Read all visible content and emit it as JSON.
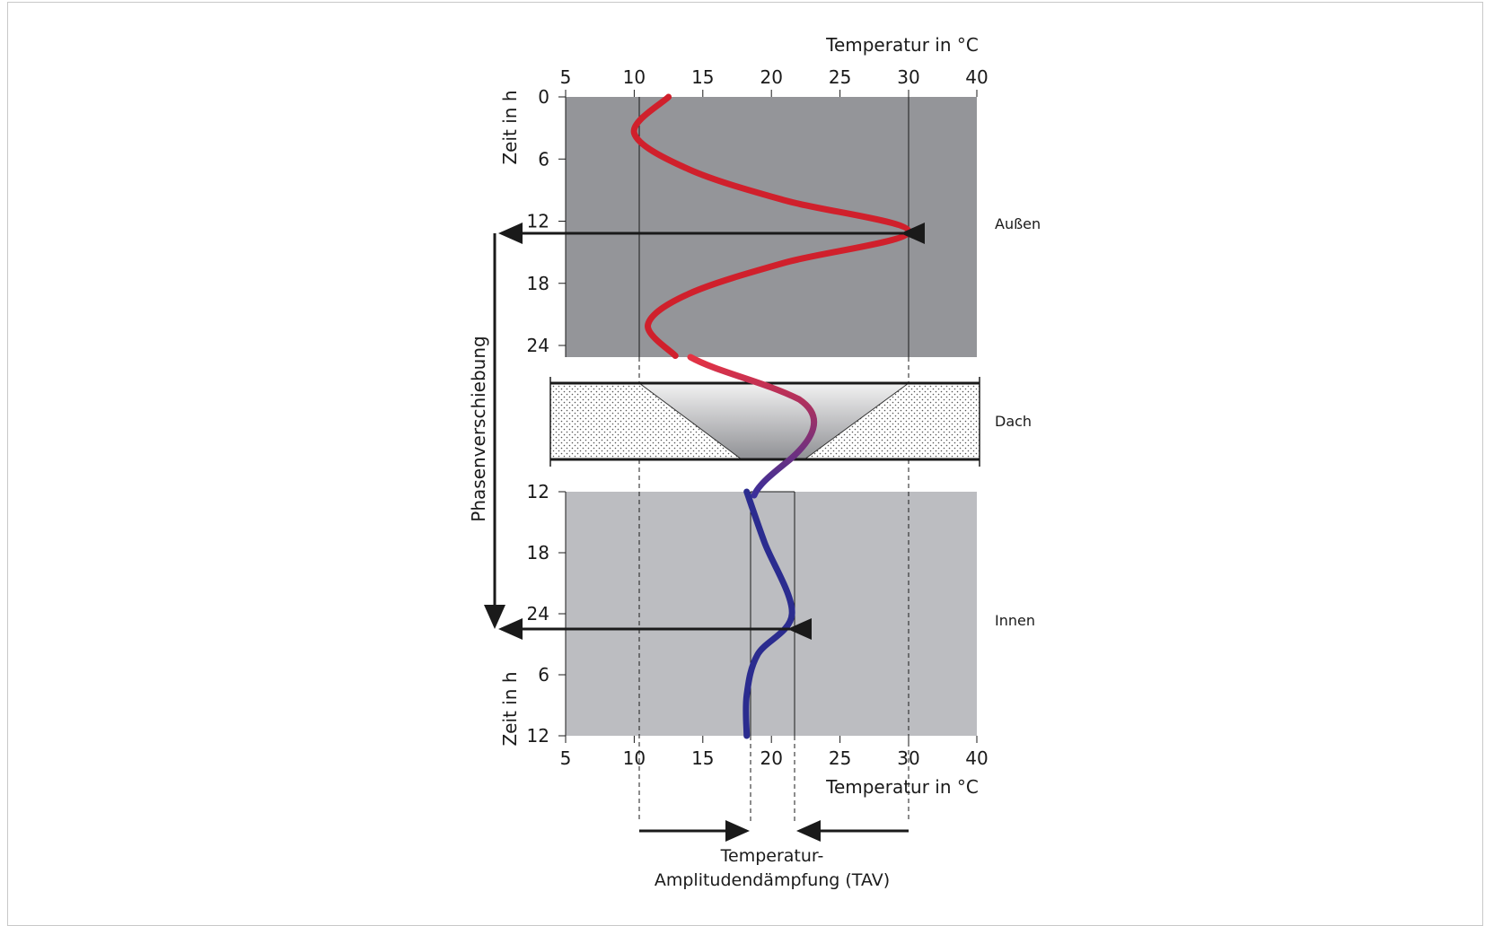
{
  "figure": {
    "top_axis_title": "Temperatur in °C",
    "bottom_axis_title": "Temperatur in °C",
    "y_axis_title_top": "Zeit in h",
    "y_axis_title_bottom": "Zeit in h",
    "phase_shift_label": "Phasenverschiebung",
    "tav_label_line1": "Temperatur-",
    "tav_label_line2": "Amplitudendämpfung (TAV)",
    "zone_labels": {
      "outside": "Außen",
      "roof": "Dach",
      "inside": "Innen"
    }
  },
  "colors": {
    "outer_panel": "#949599",
    "inner_panel": "#bcbdc1",
    "outside_curve": "#d0202c",
    "inside_curve": "#2b2c8f",
    "roof_gradient_top": "#e63242",
    "roof_gradient_bottom": "#3a2f9a"
  },
  "chart_data": {
    "type": "line",
    "x_axis": {
      "ticks": [
        "5",
        "10",
        "15",
        "20",
        "25",
        "30",
        "40"
      ],
      "tick_values": [
        5,
        10,
        15,
        20,
        25,
        30,
        40
      ]
    },
    "top_time_axis": {
      "ticks": [
        "0",
        "6",
        "12",
        "18",
        "24"
      ]
    },
    "bottom_time_axis": {
      "ticks": [
        "12",
        "18",
        "24",
        "6",
        "12"
      ]
    },
    "series": [
      {
        "name": "Außen",
        "points": [
          [
            12.5,
            0
          ],
          [
            10,
            3.5
          ],
          [
            14,
            7
          ],
          [
            21,
            10
          ],
          [
            30,
            13
          ],
          [
            21,
            16
          ],
          [
            14,
            19
          ],
          [
            11,
            22
          ],
          [
            13,
            25
          ]
        ]
      },
      {
        "name": "Innen",
        "points": [
          [
            18.2,
            12
          ],
          [
            19.5,
            17
          ],
          [
            21.5,
            24
          ],
          [
            19,
            28
          ],
          [
            18.2,
            32
          ],
          [
            18.2,
            36
          ]
        ]
      }
    ],
    "reference_lines": {
      "outside_min": 10,
      "outside_max": 30,
      "inside_min": 18.2,
      "inside_max": 21.7
    }
  }
}
